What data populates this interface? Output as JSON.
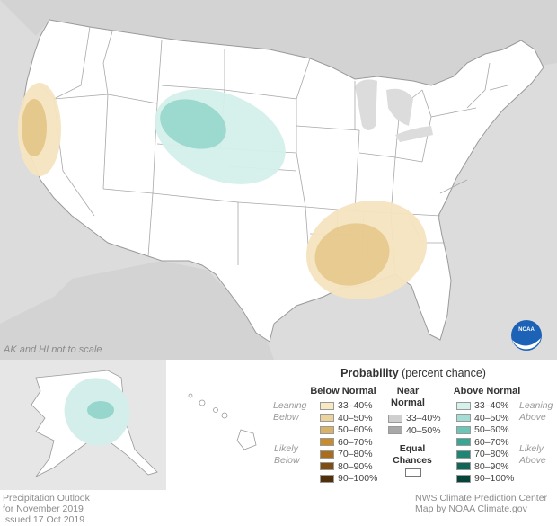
{
  "map": {
    "note": "AK and HI not to scale",
    "logo_text": "NOAA",
    "colors": {
      "land": "#ffffff",
      "ocean": "#dcdcdc",
      "border": "#9a9a9a",
      "below_33_40": "#f6e4bf",
      "below_40_50": "#e5c88c",
      "above_33_40": "#d4efeb",
      "above_40_50": "#96d6cc"
    }
  },
  "legend": {
    "title_bold": "Probability",
    "title_rest": " (percent chance)",
    "below_header": "Below Normal",
    "near_header_1": "Near",
    "near_header_2": "Normal",
    "above_header": "Above Normal",
    "equal_1": "Equal",
    "equal_2": "Chances",
    "leaning_1": "Leaning",
    "leaning_below": "Below",
    "leaning_above": "Above",
    "likely_1": "Likely",
    "likely_below": "Below",
    "likely_above": "Above",
    "below": [
      {
        "label": "33–40%",
        "color": "#f8e9c4"
      },
      {
        "label": "40–50%",
        "color": "#ecd39d"
      },
      {
        "label": "50–60%",
        "color": "#d9b26a"
      },
      {
        "label": "60–70%",
        "color": "#c68c2d"
      },
      {
        "label": "70–80%",
        "color": "#a86d1f"
      },
      {
        "label": "80–90%",
        "color": "#7e4d13"
      },
      {
        "label": "90–100%",
        "color": "#50300a"
      }
    ],
    "near": [
      {
        "label": "33–40%",
        "color": "#cfcfcf"
      },
      {
        "label": "40–50%",
        "color": "#a8a8a8"
      }
    ],
    "above": [
      {
        "label": "33–40%",
        "color": "#d6f0ec"
      },
      {
        "label": "40–50%",
        "color": "#a3ddd3"
      },
      {
        "label": "50–60%",
        "color": "#6cc5b6"
      },
      {
        "label": "60–70%",
        "color": "#3aa593"
      },
      {
        "label": "70–80%",
        "color": "#1f8675"
      },
      {
        "label": "80–90%",
        "color": "#116658"
      },
      {
        "label": "90–100%",
        "color": "#06443a"
      }
    ]
  },
  "footer": {
    "left_1": "Precipitation Outlook",
    "left_2": "for November 2019",
    "left_3": "Issued 17 Oct 2019",
    "right_1": "NWS Climate Prediction Center",
    "right_2": "Map by NOAA Climate.gov"
  }
}
